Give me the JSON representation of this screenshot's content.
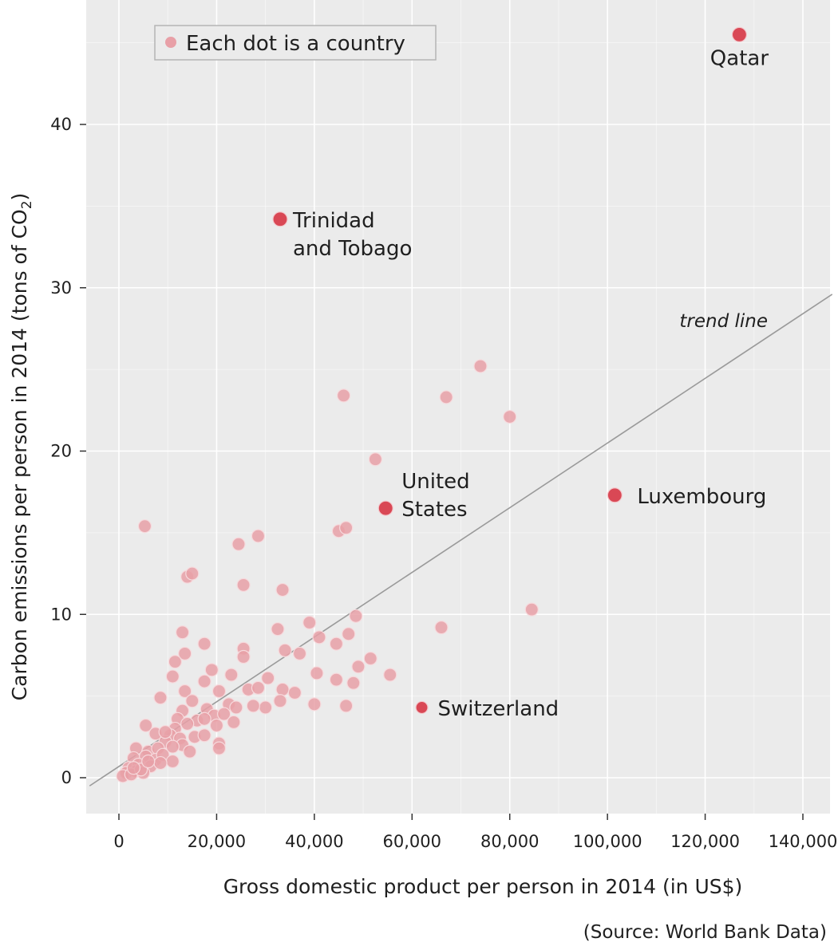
{
  "chart_data": {
    "type": "scatter",
    "title": "",
    "xlabel": "Gross domestic product per person in 2014 (in US$)",
    "ylabel_main": "Carbon emissions per person in 2014 (tons of CO",
    "ylabel_sub": "2",
    "ylabel_close": ")",
    "xlim": [
      -5000,
      145000
    ],
    "ylim": [
      -2,
      48
    ],
    "xticks": [
      0,
      20000,
      40000,
      60000,
      80000,
      100000,
      120000,
      140000
    ],
    "xtick_labels": [
      "0",
      "20,000",
      "40,000",
      "60,000",
      "80,000",
      "100,000",
      "120,000",
      "140,000"
    ],
    "yticks": [
      0,
      10,
      20,
      30,
      40
    ],
    "ytick_labels": [
      "0",
      "10",
      "20",
      "30",
      "40"
    ],
    "grid": true,
    "legend": {
      "label": "Each dot is a country",
      "position": "top-left"
    },
    "trend_line": {
      "label": "trend line",
      "x": [
        -6000,
        146000
      ],
      "y": [
        -0.5,
        29.6
      ]
    },
    "highlighted": [
      {
        "label": "Qatar",
        "x": 127000,
        "y": 45.5
      },
      {
        "label_lines": [
          "Trinidad",
          "and Tobago"
        ],
        "x": 33000,
        "y": 34.2
      },
      {
        "label_lines": [
          "United",
          "States"
        ],
        "x": 54600,
        "y": 16.5
      },
      {
        "label": "Luxembourg",
        "x": 101500,
        "y": 17.3
      },
      {
        "label": "Switzerland",
        "x": 62000,
        "y": 4.3
      }
    ],
    "points": [
      [
        5300,
        15.4
      ],
      [
        74000,
        25.2
      ],
      [
        46000,
        23.4
      ],
      [
        67000,
        23.3
      ],
      [
        80000,
        22.1
      ],
      [
        52500,
        19.5
      ],
      [
        24500,
        14.3
      ],
      [
        28500,
        14.8
      ],
      [
        45000,
        15.1
      ],
      [
        46500,
        15.3
      ],
      [
        14000,
        12.3
      ],
      [
        15000,
        12.5
      ],
      [
        25500,
        11.8
      ],
      [
        33500,
        11.5
      ],
      [
        84500,
        10.3
      ],
      [
        39000,
        9.5
      ],
      [
        48500,
        9.9
      ],
      [
        13000,
        8.9
      ],
      [
        32500,
        9.1
      ],
      [
        47000,
        8.8
      ],
      [
        66000,
        9.2
      ],
      [
        41000,
        8.6
      ],
      [
        17500,
        8.2
      ],
      [
        25500,
        7.9
      ],
      [
        44500,
        8.2
      ],
      [
        13500,
        7.6
      ],
      [
        25500,
        7.4
      ],
      [
        34000,
        7.8
      ],
      [
        37000,
        7.6
      ],
      [
        11500,
        7.1
      ],
      [
        19000,
        6.6
      ],
      [
        49000,
        6.8
      ],
      [
        51500,
        7.3
      ],
      [
        11000,
        6.2
      ],
      [
        23000,
        6.3
      ],
      [
        30500,
        6.1
      ],
      [
        40500,
        6.4
      ],
      [
        44500,
        6.0
      ],
      [
        48000,
        5.8
      ],
      [
        55500,
        6.3
      ],
      [
        17500,
        5.9
      ],
      [
        13500,
        5.3
      ],
      [
        20500,
        5.3
      ],
      [
        26500,
        5.4
      ],
      [
        28500,
        5.5
      ],
      [
        33500,
        5.4
      ],
      [
        36000,
        5.2
      ],
      [
        8500,
        4.9
      ],
      [
        15000,
        4.7
      ],
      [
        22500,
        4.5
      ],
      [
        30000,
        4.3
      ],
      [
        33000,
        4.7
      ],
      [
        40000,
        4.5
      ],
      [
        46500,
        4.4
      ],
      [
        13000,
        4.1
      ],
      [
        18000,
        4.2
      ],
      [
        24000,
        4.3
      ],
      [
        27500,
        4.4
      ],
      [
        12000,
        3.6
      ],
      [
        16000,
        3.5
      ],
      [
        19500,
        3.8
      ],
      [
        21500,
        3.9
      ],
      [
        5500,
        3.2
      ],
      [
        11500,
        3.0
      ],
      [
        14000,
        3.3
      ],
      [
        17500,
        3.6
      ],
      [
        20000,
        3.2
      ],
      [
        23500,
        3.4
      ],
      [
        7500,
        2.7
      ],
      [
        10500,
        2.6
      ],
      [
        12500,
        2.4
      ],
      [
        15500,
        2.5
      ],
      [
        17500,
        2.6
      ],
      [
        9500,
        2.2
      ],
      [
        13000,
        2.0
      ],
      [
        20500,
        2.1
      ],
      [
        3500,
        1.8
      ],
      [
        6000,
        1.6
      ],
      [
        8000,
        1.8
      ],
      [
        11000,
        1.9
      ],
      [
        14500,
        1.6
      ],
      [
        20500,
        1.8
      ],
      [
        3000,
        1.2
      ],
      [
        5500,
        1.3
      ],
      [
        7500,
        1.1
      ],
      [
        9000,
        1.4
      ],
      [
        11000,
        1.0
      ],
      [
        2000,
        0.6
      ],
      [
        4000,
        0.8
      ],
      [
        6500,
        0.7
      ],
      [
        8500,
        0.9
      ],
      [
        1500,
        0.3
      ],
      [
        3500,
        0.4
      ],
      [
        5000,
        0.3
      ],
      [
        800,
        0.1
      ],
      [
        2500,
        0.2
      ],
      [
        4500,
        0.5
      ],
      [
        6000,
        1.0
      ],
      [
        3000,
        0.6
      ],
      [
        9500,
        2.8
      ]
    ]
  },
  "source": "(Source: World Bank Data)",
  "colors": {
    "panel": "#ebebeb",
    "grid": "#ffffff",
    "point": "#e8a0a7",
    "point_stroke": "#f6dadd",
    "highlight": "#d94855",
    "trend": "#9a9a9a",
    "text": "#1f1f1f"
  }
}
